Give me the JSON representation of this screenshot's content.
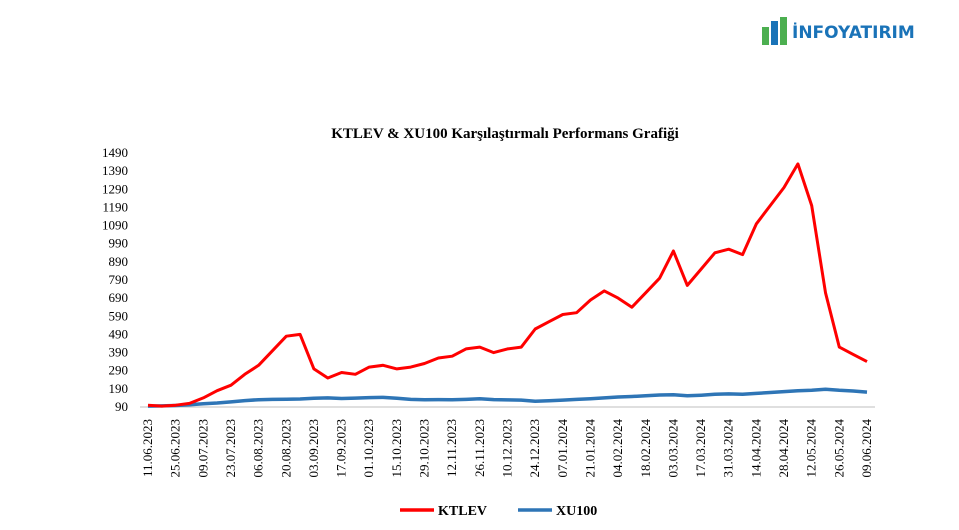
{
  "logo": "İNFOYATIRIM",
  "chart_data": {
    "type": "line",
    "title": "KTLEV & XU100 Karşılaştırmalı Performans Grafiği",
    "categories": [
      "11.06.2023",
      null,
      "25.06.2023",
      null,
      "09.07.2023",
      null,
      "23.07.2023",
      null,
      "06.08.2023",
      null,
      "20.08.2023",
      null,
      "03.09.2023",
      null,
      "17.09.2023",
      null,
      "01.10.2023",
      null,
      "15.10.2023",
      null,
      "29.10.2023",
      null,
      "12.11.2023",
      null,
      "26.11.2023",
      null,
      "10.12.2023",
      null,
      "24.12.2023",
      null,
      "07.01.2024",
      null,
      "21.01.2024",
      null,
      "04.02.2024",
      null,
      "18.02.2024",
      null,
      "03.03.2024",
      null,
      "17.03.2024",
      null,
      "31.03.2024",
      null,
      "14.04.2024",
      null,
      "28.04.2024",
      null,
      "12.05.2024",
      null,
      "26.05.2024",
      null,
      "09.06.2024"
    ],
    "series": [
      {
        "name": "KTLEV",
        "color": "#ff0000",
        "values": [
          100,
          95,
          100,
          110,
          140,
          180,
          210,
          270,
          320,
          400,
          480,
          490,
          300,
          250,
          280,
          270,
          310,
          320,
          300,
          310,
          330,
          360,
          370,
          410,
          420,
          390,
          410,
          420,
          520,
          560,
          600,
          610,
          680,
          730,
          690,
          640,
          720,
          800,
          950,
          760,
          850,
          940,
          960,
          930,
          1100,
          1200,
          1300,
          1430,
          1200,
          720,
          420,
          380,
          340
        ]
      },
      {
        "name": "XU100",
        "color": "#2e75b6",
        "values": [
          95,
          96,
          98,
          102,
          108,
          112,
          118,
          125,
          130,
          132,
          133,
          134,
          138,
          140,
          137,
          139,
          142,
          143,
          138,
          132,
          130,
          131,
          130,
          132,
          135,
          131,
          129,
          128,
          122,
          124,
          128,
          132,
          135,
          140,
          145,
          148,
          152,
          156,
          158,
          152,
          155,
          160,
          162,
          160,
          165,
          170,
          175,
          180,
          182,
          188,
          182,
          178,
          172
        ]
      }
    ],
    "ylim": [
      90,
      1490
    ],
    "yticks": [
      90,
      190,
      290,
      390,
      490,
      590,
      690,
      790,
      890,
      990,
      1090,
      1190,
      1290,
      1390,
      1490
    ]
  }
}
